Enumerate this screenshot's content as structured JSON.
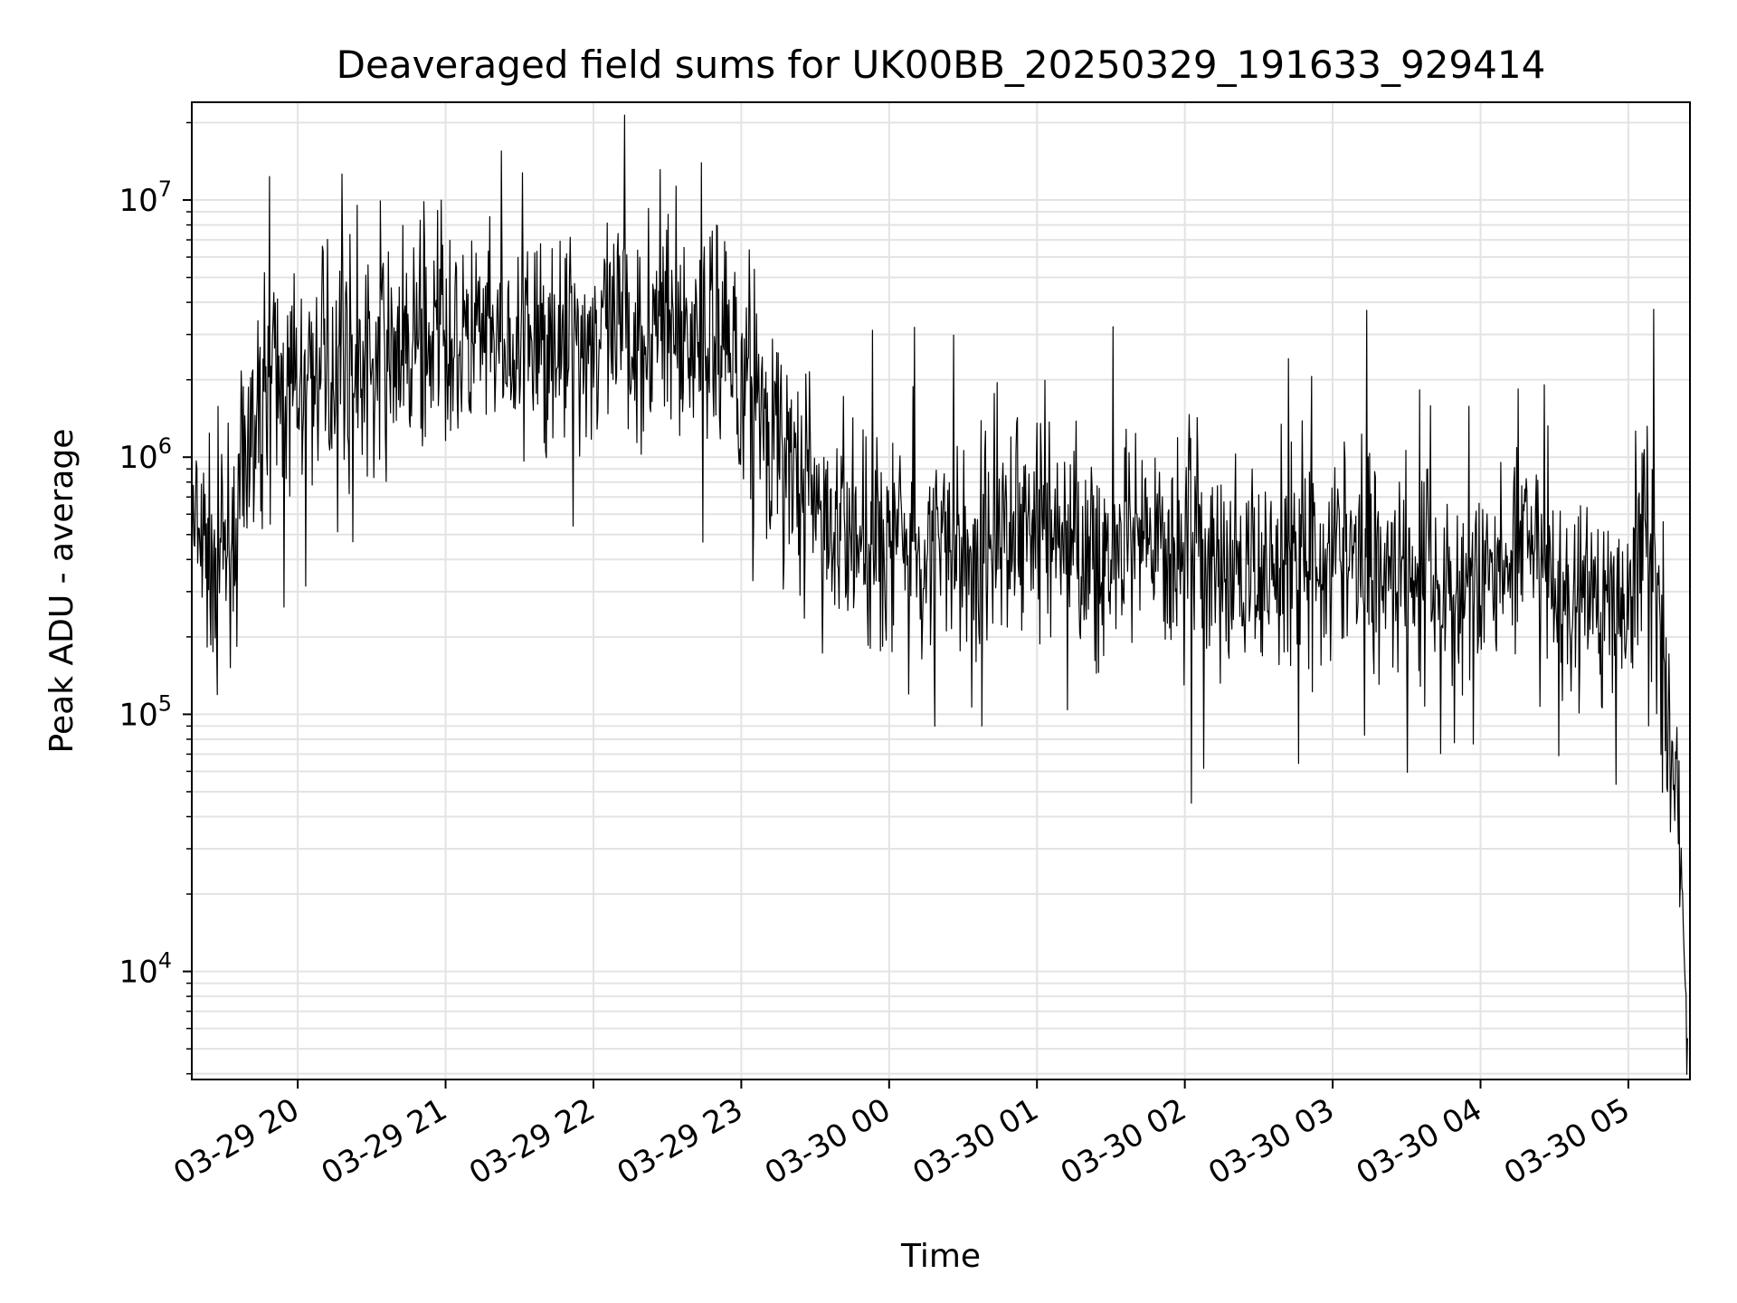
{
  "chart_data": {
    "type": "line",
    "title": "Deaveraged field sums for UK00BB_20250329_191633_929414",
    "xlabel": "Time",
    "ylabel": "Peak ADU - average",
    "yscale": "log",
    "ylim": [
      3800,
      24000000
    ],
    "xlim": [
      "2025-03-29T19:17:00",
      "2025-03-30T05:25:00"
    ],
    "grid": true,
    "line_color": "#000000",
    "grid_color": "#e3e3e3",
    "x_ticks": [
      {
        "value": "2025-03-29T20:00:00",
        "label": "03-29 20"
      },
      {
        "value": "2025-03-29T21:00:00",
        "label": "03-29 21"
      },
      {
        "value": "2025-03-29T22:00:00",
        "label": "03-29 22"
      },
      {
        "value": "2025-03-29T23:00:00",
        "label": "03-29 23"
      },
      {
        "value": "2025-03-30T00:00:00",
        "label": "03-30 00"
      },
      {
        "value": "2025-03-30T01:00:00",
        "label": "03-30 01"
      },
      {
        "value": "2025-03-30T02:00:00",
        "label": "03-30 02"
      },
      {
        "value": "2025-03-30T03:00:00",
        "label": "03-30 03"
      },
      {
        "value": "2025-03-30T04:00:00",
        "label": "03-30 04"
      },
      {
        "value": "2025-03-30T05:00:00",
        "label": "03-30 05"
      }
    ],
    "y_ticks": [
      {
        "value": 10000,
        "base": "10",
        "exp": "4"
      },
      {
        "value": 100000,
        "base": "10",
        "exp": "5"
      },
      {
        "value": 1000000,
        "base": "10",
        "exp": "6"
      },
      {
        "value": 10000000,
        "base": "10",
        "exp": "7"
      }
    ],
    "series": [
      {
        "x": [
          "2025-03-29T19:17:00",
          "2025-03-29T19:20:00",
          "2025-03-29T19:25:00",
          "2025-03-29T19:30:00",
          "2025-03-29T19:35:00",
          "2025-03-29T19:40:00",
          "2025-03-29T19:45:00",
          "2025-03-29T19:50:00",
          "2025-03-29T20:00:00",
          "2025-03-29T20:10:00",
          "2025-03-29T20:20:00",
          "2025-03-29T20:30:00",
          "2025-03-29T20:40:00",
          "2025-03-29T20:50:00",
          "2025-03-29T21:00:00",
          "2025-03-29T21:15:00",
          "2025-03-29T21:30:00",
          "2025-03-29T21:45:00",
          "2025-03-29T22:00:00",
          "2025-03-29T22:15:00",
          "2025-03-29T22:30:00",
          "2025-03-29T22:45:00",
          "2025-03-29T23:00:00",
          "2025-03-29T23:10:00",
          "2025-03-29T23:20:00",
          "2025-03-29T23:30:00",
          "2025-03-29T23:40:00",
          "2025-03-29T23:50:00",
          "2025-03-30T00:00:00",
          "2025-03-30T00:15:00",
          "2025-03-30T00:30:00",
          "2025-03-30T00:45:00",
          "2025-03-30T01:00:00",
          "2025-03-30T01:15:00",
          "2025-03-30T01:30:00",
          "2025-03-30T01:45:00",
          "2025-03-30T02:00:00",
          "2025-03-30T02:15:00",
          "2025-03-30T02:30:00",
          "2025-03-30T02:45:00",
          "2025-03-30T03:00:00",
          "2025-03-30T03:15:00",
          "2025-03-30T03:30:00",
          "2025-03-30T03:45:00",
          "2025-03-30T04:00:00",
          "2025-03-30T04:15:00",
          "2025-03-30T04:30:00",
          "2025-03-30T04:45:00",
          "2025-03-30T05:00:00",
          "2025-03-30T05:05:00",
          "2025-03-30T05:10:00",
          "2025-03-30T05:15:00",
          "2025-03-30T05:20:00",
          "2025-03-30T05:24:00"
        ],
        "y": [
          500000,
          450000,
          400000,
          500000,
          550000,
          900000,
          1600000,
          1800000,
          2000000,
          2200000,
          2400000,
          2300000,
          2600000,
          2800000,
          3000000,
          2700000,
          2600000,
          2900000,
          3000000,
          3000000,
          3100000,
          2900000,
          2300000,
          1500000,
          900000,
          600000,
          500000,
          450000,
          500000,
          450000,
          400000,
          500000,
          550000,
          450000,
          400000,
          420000,
          450000,
          380000,
          350000,
          400000,
          420000,
          430000,
          380000,
          300000,
          300000,
          450000,
          300000,
          280000,
          320000,
          450000,
          600000,
          120000,
          60000,
          5500
        ]
      }
    ]
  }
}
